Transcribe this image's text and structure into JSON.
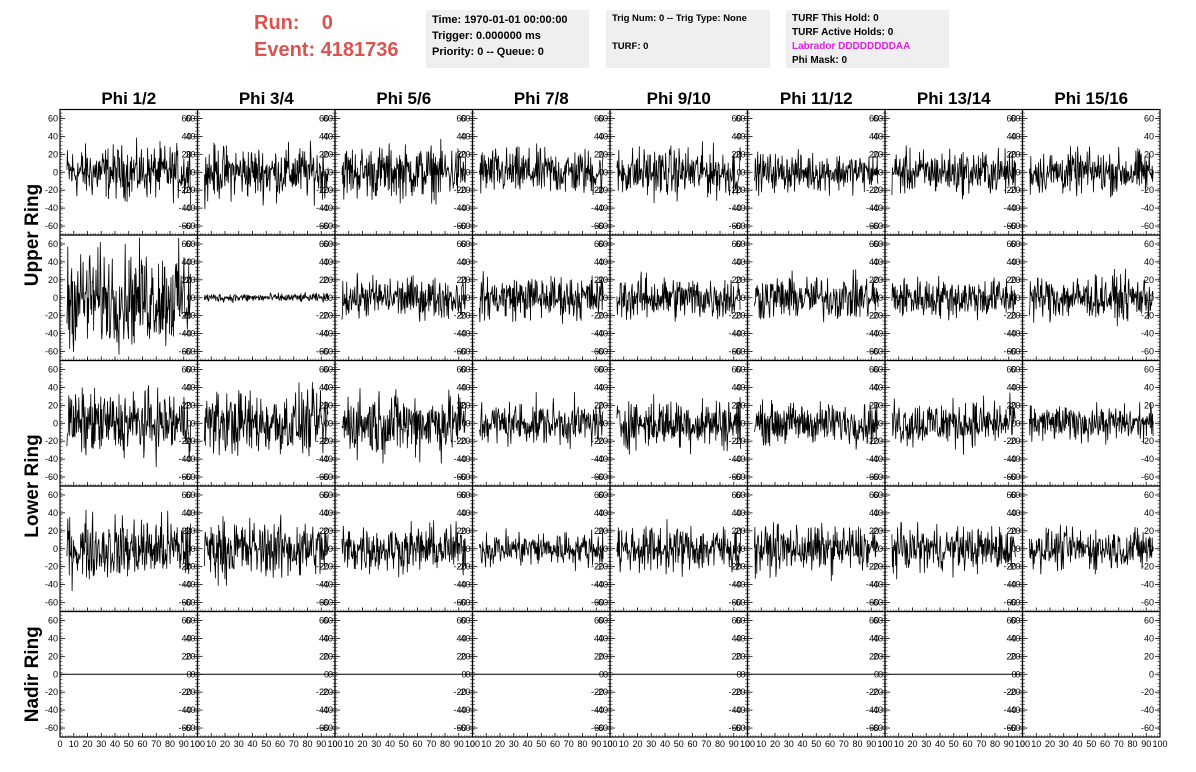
{
  "run_label": "Run:",
  "run_value": "0",
  "event_label": "Event:",
  "event_value": "4181736",
  "info_box_1": {
    "time": "Time: 1970-01-01 00:00:00",
    "trigger": "Trigger: 0.000000 ms",
    "priority": "Priority: 0 -- Queue: 0"
  },
  "info_box_2": {
    "trig": "Trig Num: 0 -- Trig Type: None",
    "turf": "TURF: 0"
  },
  "info_box_3": {
    "this_hold": "TURF This Hold: 0",
    "active_holds": "TURF Active Holds: 0",
    "labrador": "Labrador DDDDDDDDAA",
    "phi_mask": "Phi Mask: 0"
  },
  "colors": {
    "highlight_red": "#d9534f",
    "labrador_magenta": "#e020e0",
    "box_bg": "#efefef",
    "trace": "#000000"
  },
  "chart_data": {
    "type": "line",
    "columns": [
      "Phi 1/2",
      "Phi 3/4",
      "Phi 5/6",
      "Phi 7/8",
      "Phi 9/10",
      "Phi 11/12",
      "Phi 13/14",
      "Phi 15/16"
    ],
    "rings": [
      {
        "name": "Upper Ring",
        "rows": 2
      },
      {
        "name": "Lower Ring",
        "rows": 2
      },
      {
        "name": "Nadir Ring",
        "rows": 1
      }
    ],
    "xlim": [
      0,
      100
    ],
    "ylim": [
      -70,
      70
    ],
    "x_ticks": [
      "0",
      "10",
      "20",
      "30",
      "40",
      "50",
      "60",
      "70",
      "80",
      "90",
      "100"
    ],
    "y_ticks": [
      "60",
      "40",
      "20",
      "0",
      "-20",
      "-40",
      "-60"
    ],
    "grid": false,
    "amplitude_rows": [
      [
        18,
        18,
        18,
        16,
        17,
        13,
        15,
        15
      ],
      [
        33,
        3,
        14,
        15,
        15,
        15,
        14,
        15
      ],
      [
        22,
        22,
        22,
        15,
        17,
        14,
        16,
        12
      ],
      [
        22,
        20,
        16,
        12,
        16,
        16,
        15,
        14
      ],
      [
        0,
        0,
        0,
        0,
        0,
        0,
        0,
        0
      ]
    ],
    "nadir_visible_columns": 7
  }
}
